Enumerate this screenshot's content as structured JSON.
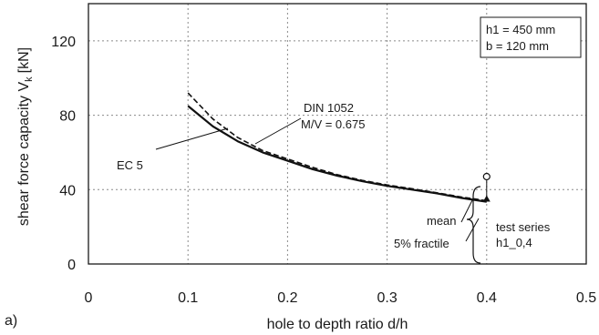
{
  "chart_data": {
    "type": "line",
    "panel_label": "a)",
    "xlabel": "hole to depth ratio d/h",
    "ylabel": "shear force capacity V",
    "ylabel_subscript": "k",
    "ylabel_unit": "[kN]",
    "xlim": [
      0,
      0.5
    ],
    "ylim": [
      0,
      140
    ],
    "x_ticks": [
      0,
      0.1,
      0.2,
      0.3,
      0.4,
      0.5
    ],
    "x_tick_labels": [
      "0",
      "0.1",
      "0.2",
      "0.3",
      "0.4",
      "0.5"
    ],
    "y_ticks": [
      0,
      40,
      80,
      120
    ],
    "y_tick_labels": [
      "0",
      "40",
      "80",
      "120"
    ],
    "grid": true,
    "info_box": [
      "h1 = 450 mm",
      "b = 120 mm"
    ],
    "series": [
      {
        "name": "EC 5",
        "style": "solid",
        "x": [
          0.1,
          0.125,
          0.15,
          0.175,
          0.2,
          0.225,
          0.25,
          0.275,
          0.3,
          0.325,
          0.35,
          0.375,
          0.4
        ],
        "y": [
          85,
          74,
          66,
          60,
          55.5,
          51,
          47.5,
          44.5,
          42,
          40,
          38,
          35.5,
          33.5
        ]
      },
      {
        "name": "DIN 1052",
        "label_line2": "M/V = 0.675",
        "style": "dashed",
        "x": [
          0.1,
          0.125,
          0.15,
          0.175,
          0.2,
          0.225,
          0.25,
          0.275,
          0.3,
          0.325,
          0.35,
          0.375,
          0.4
        ],
        "y": [
          92,
          78,
          68,
          61,
          56.5,
          52,
          48,
          45,
          42.5,
          40.5,
          38.3,
          36,
          34
        ]
      }
    ],
    "test_points": {
      "label": "test series",
      "label_line2": "h1_0,4",
      "mean": {
        "label": "mean",
        "x": 0.4,
        "y": 47
      },
      "fractile": {
        "label": "5% fractile",
        "x": 0.4,
        "y": 35
      }
    }
  }
}
